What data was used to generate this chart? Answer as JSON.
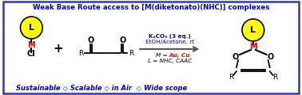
{
  "title": "Weak Base Route access to [M(diketonato)(NHC)] complexes",
  "title_color": "#0000CC",
  "background_color": "#FFFFFF",
  "border_color": "#3333CC",
  "footer_text": "Sustainable ◇ Scalable ◇ in Air  ◇ Wide scope",
  "footer_color": "#0000CC",
  "conditions_line1": "K₂CO₃ (3 eq.)",
  "conditions_line2": "EtOH/Acetone, rt",
  "conditions_color": "#0000CC",
  "M_Au_Cu": "Au, Cu",
  "M_label_prefix": "M = ",
  "L_label_line": "L = NHC, CAAC",
  "arrow_color": "#555555",
  "yellow_color": "#FFFF00",
  "yellow_edge": "#000000",
  "L_text_color": "#000000",
  "M_text_color": "#FF0000",
  "Cl_text_color": "#000000",
  "bond_color": "#000000",
  "O_text_color": "#000000",
  "R_text_color": "#000000",
  "plus_color": "#000000",
  "red_color": "#FF0000",
  "black": "#000000"
}
